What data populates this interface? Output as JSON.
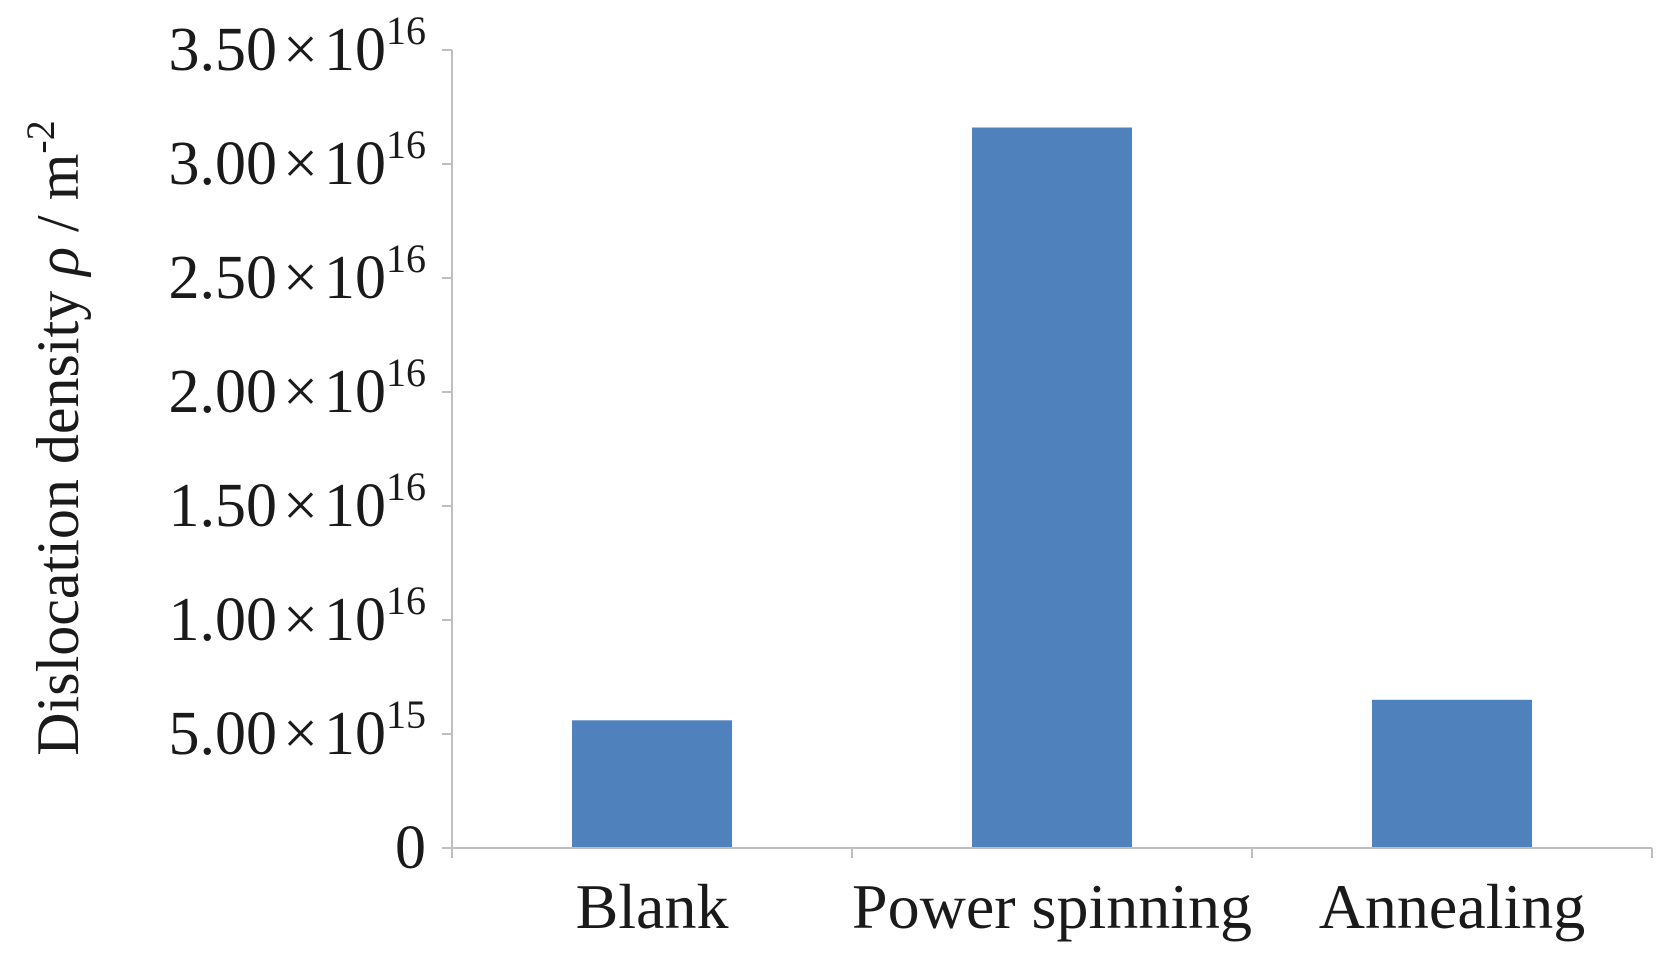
{
  "chart_data": {
    "type": "bar",
    "title": "",
    "xlabel": "",
    "ylabel": {
      "prefix": "Dislocation density ",
      "symbol": "ρ",
      "unit": " / m",
      "exponent": "-2"
    },
    "categories": [
      "Blank",
      "Power spinning",
      "Annealing"
    ],
    "values": [
      5600000000000000.0,
      3.16e+16,
      6500000000000000.0
    ],
    "ylim": [
      0,
      3.5e+16
    ],
    "yticks": [
      {
        "value": 0,
        "mantissa": "0",
        "exponent": ""
      },
      {
        "value": 5000000000000000.0,
        "mantissa": "5.00",
        "exponent": "15"
      },
      {
        "value": 1e+16,
        "mantissa": "1.00",
        "exponent": "16"
      },
      {
        "value": 1.5e+16,
        "mantissa": "1.50",
        "exponent": "16"
      },
      {
        "value": 2e+16,
        "mantissa": "2.00",
        "exponent": "16"
      },
      {
        "value": 2.5e+16,
        "mantissa": "2.50",
        "exponent": "16"
      },
      {
        "value": 3e+16,
        "mantissa": "3.00",
        "exponent": "16"
      },
      {
        "value": 3.5e+16,
        "mantissa": "3.50",
        "exponent": "16"
      }
    ],
    "times_symbol": "×",
    "base": "10",
    "grid": false,
    "legend": "none",
    "colors": {
      "bar": "#4f81bd",
      "axis": "#bfbfbf",
      "text": "#1a1a1a"
    }
  }
}
